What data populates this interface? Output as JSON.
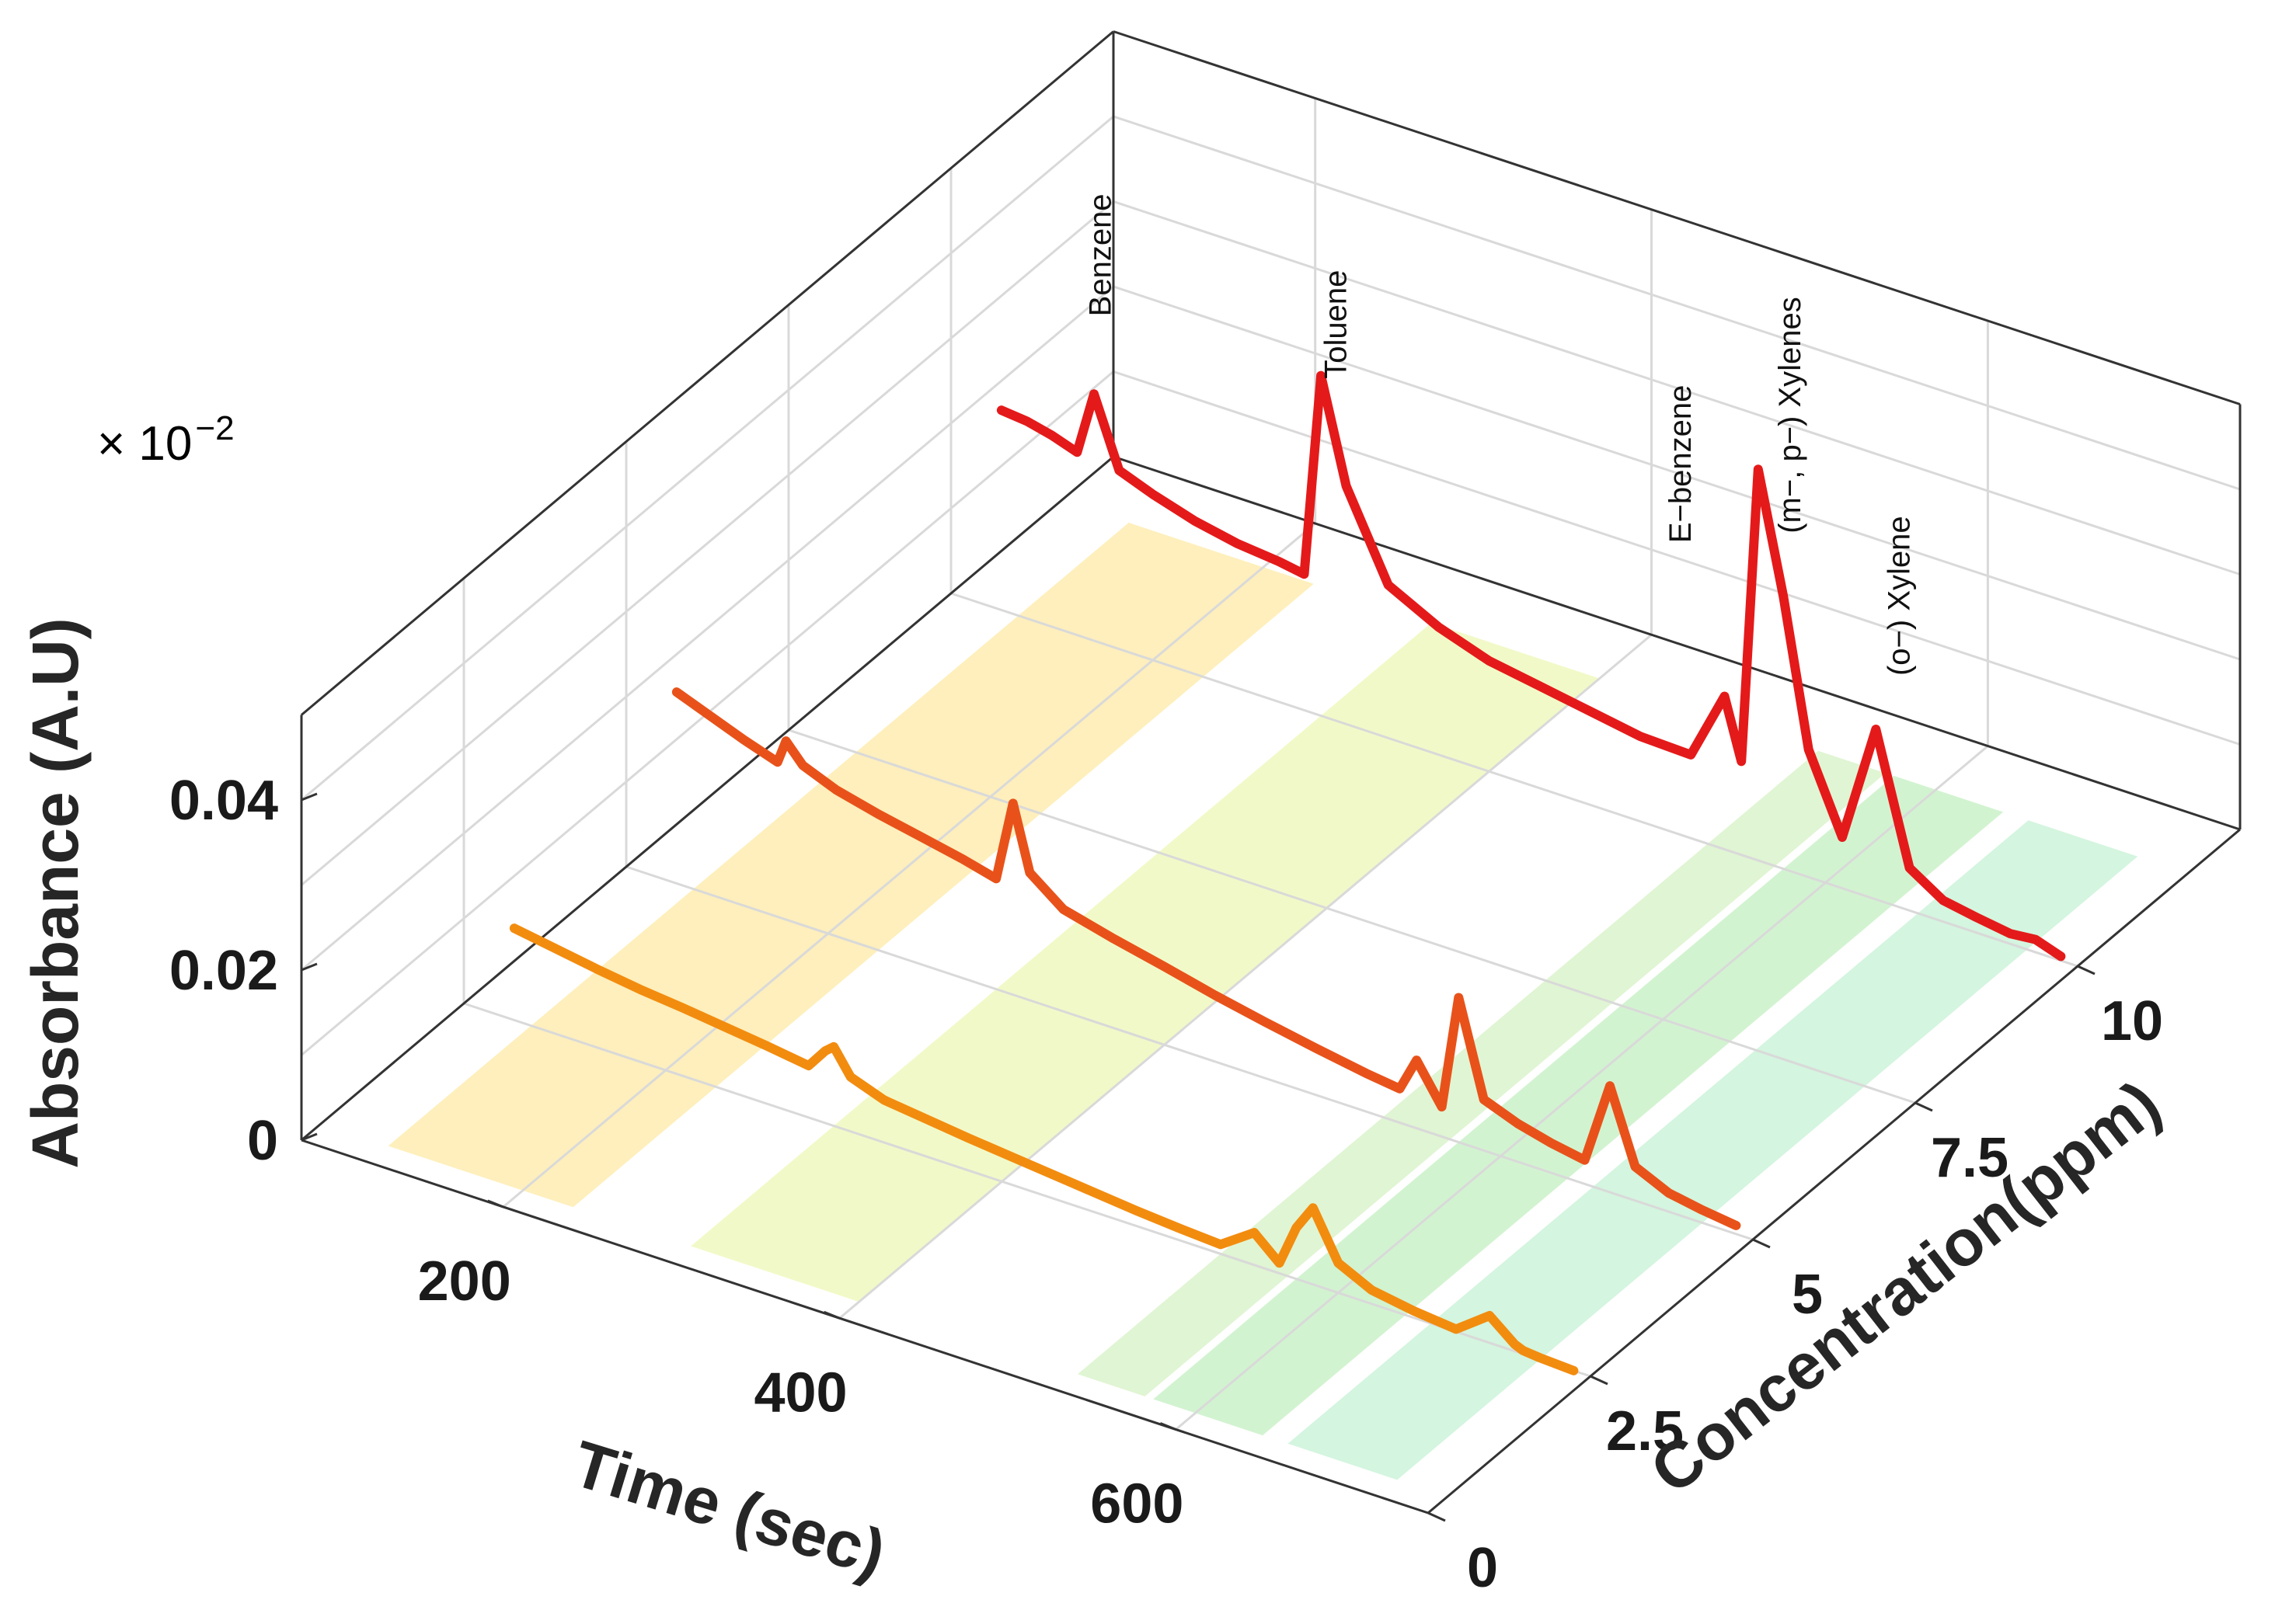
{
  "chart_data": {
    "type": "line",
    "title": "",
    "xlabel": "Time (sec)",
    "ylabel": "Concentration(ppm)",
    "zlabel": "Absorbance (A.U)",
    "z_multiplier_base": "× 10",
    "z_multiplier_exp": "−2",
    "xlim": [
      80,
      750
    ],
    "ylim": [
      0,
      12.5
    ],
    "zlim": [
      0,
      0.05
    ],
    "x_ticks": [
      "200",
      "400",
      "600"
    ],
    "x_tick_values": [
      200,
      400,
      600
    ],
    "y_ticks": [
      "0",
      "2.5",
      "5",
      "7.5",
      "10"
    ],
    "y_tick_values": [
      0,
      2.5,
      5,
      7.5,
      10
    ],
    "z_ticks": [
      "0",
      "0.02",
      "0.04"
    ],
    "z_tick_values": [
      0,
      0.02,
      0.04
    ],
    "grid": true,
    "series": [
      {
        "name": "2.5 ppm",
        "concentration": 2.5,
        "color": "#f28c0f",
        "x": [
          110,
          135,
          160,
          185,
          210,
          235,
          260,
          285,
          295,
          300,
          310,
          330,
          355,
          380,
          405,
          430,
          455,
          480,
          505,
          530,
          550,
          565,
          575,
          585,
          600,
          620,
          645,
          670,
          690,
          705,
          710,
          720,
          740
        ],
        "z": [
          0.0108,
          0.01,
          0.0092,
          0.0085,
          0.008,
          0.0074,
          0.0068,
          0.0061,
          0.0085,
          0.0093,
          0.0064,
          0.005,
          0.0044,
          0.0038,
          0.0033,
          0.0028,
          0.0023,
          0.0018,
          0.0014,
          0.0011,
          0.0038,
          0.0012,
          0.006,
          0.009,
          0.0035,
          0.0016,
          0.0008,
          0.0003,
          0.0032,
          0.0008,
          0.0004,
          0.0002,
          0.0
        ]
      },
      {
        "name": "5 ppm",
        "concentration": 5,
        "color": "#e8521a",
        "x": [
          110,
          130,
          150,
          170,
          175,
          185,
          205,
          230,
          255,
          280,
          300,
          310,
          320,
          340,
          370,
          400,
          430,
          460,
          490,
          520,
          540,
          550,
          565,
          575,
          590,
          610,
          630,
          650,
          665,
          680,
          700,
          720,
          740
        ],
        "z": [
          0.0225,
          0.021,
          0.0195,
          0.0182,
          0.021,
          0.0188,
          0.0172,
          0.016,
          0.015,
          0.014,
          0.013,
          0.0225,
          0.015,
          0.012,
          0.0105,
          0.0092,
          0.0078,
          0.0066,
          0.0055,
          0.0045,
          0.004,
          0.008,
          0.0035,
          0.017,
          0.006,
          0.0045,
          0.0035,
          0.0028,
          0.0125,
          0.004,
          0.0022,
          0.0015,
          0.001
        ]
      },
      {
        "name": "10 ppm",
        "concentration": 10,
        "color": "#e41a1a",
        "x": [
          110,
          125,
          140,
          155,
          165,
          180,
          200,
          225,
          250,
          275,
          290,
          300,
          315,
          340,
          370,
          400,
          430,
          460,
          490,
          520,
          540,
          550,
          560,
          575,
          590,
          610,
          630,
          650,
          670,
          690,
          710,
          725,
          740
        ],
        "z": [
          0.0235,
          0.0232,
          0.0225,
          0.0215,
          0.029,
          0.021,
          0.0195,
          0.018,
          0.017,
          0.0165,
          0.016,
          0.04,
          0.028,
          0.018,
          0.015,
          0.013,
          0.012,
          0.011,
          0.01,
          0.0098,
          0.018,
          0.011,
          0.046,
          0.032,
          0.015,
          0.006,
          0.02,
          0.005,
          0.0025,
          0.0018,
          0.0012,
          0.0015,
          0.0005
        ]
      }
    ],
    "bands": [
      {
        "x": [
          120,
          230
        ],
        "color": "#fde9a6"
      },
      {
        "x": [
          300,
          400
        ],
        "color": "#eef7b5"
      },
      {
        "x": [
          530,
          570
        ],
        "color": "#d6f2c4"
      },
      {
        "x": [
          575,
          640
        ],
        "color": "#c3efc0"
      },
      {
        "x": [
          655,
          720
        ],
        "color": "#c5f1d4"
      }
    ],
    "annotations": [
      {
        "text": "Benzene",
        "x": 175,
        "y": 10,
        "z": 0.046
      },
      {
        "text": "Toluene",
        "x": 315,
        "y": 10,
        "z": 0.047
      },
      {
        "text": "E−benzene",
        "x": 520,
        "y": 10,
        "z": 0.044
      },
      {
        "text": "(m−, p−) Xylenes",
        "x": 585,
        "y": 10,
        "z": 0.054
      },
      {
        "text": "(o−) Xylene",
        "x": 650,
        "y": 10,
        "z": 0.037
      }
    ]
  }
}
